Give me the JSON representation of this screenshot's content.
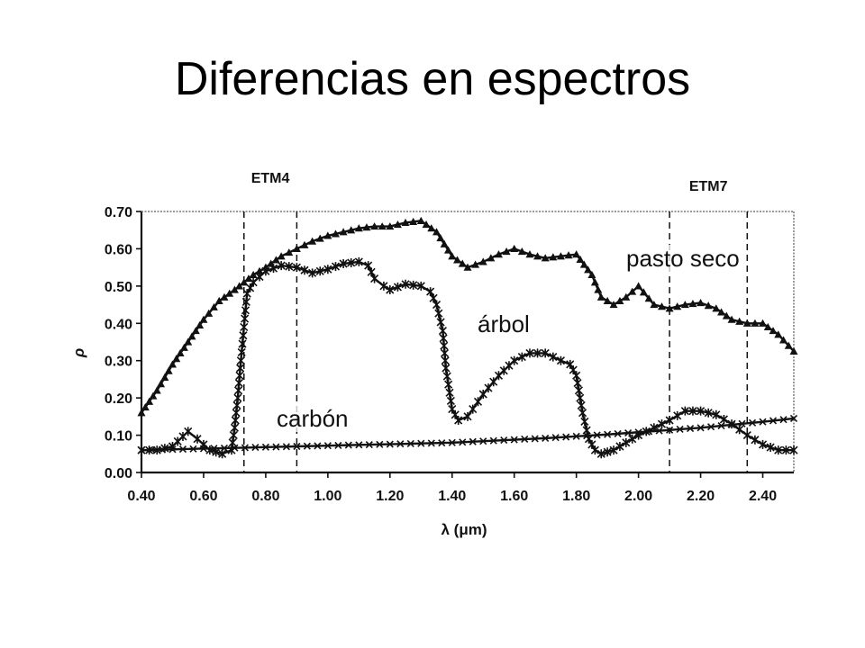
{
  "slide": {
    "title": "Diferencias en espectros"
  },
  "chart_data": {
    "type": "line",
    "xlabel": "λ (μm)",
    "ylabel": "ρ",
    "xlim": [
      0.4,
      2.5
    ],
    "ylim": [
      0.0,
      0.7
    ],
    "xticks": [
      "0.40",
      "0.60",
      "0.80",
      "1.00",
      "1.20",
      "1.40",
      "1.60",
      "1.80",
      "2.00",
      "2.20",
      "2.40"
    ],
    "yticks": [
      "0.00",
      "0.10",
      "0.20",
      "0.30",
      "0.40",
      "0.50",
      "0.60",
      "0.70"
    ],
    "grid": false,
    "bands": [
      {
        "label": "ETM4",
        "x": [
          0.73,
          0.9
        ]
      },
      {
        "label": "ETM7",
        "x": [
          2.1,
          2.35
        ]
      }
    ],
    "series": [
      {
        "name": "pasto seco",
        "marker": "triangle",
        "x": [
          0.4,
          0.45,
          0.5,
          0.55,
          0.6,
          0.65,
          0.7,
          0.73,
          0.76,
          0.8,
          0.85,
          0.9,
          0.95,
          1.0,
          1.05,
          1.1,
          1.15,
          1.2,
          1.25,
          1.3,
          1.35,
          1.4,
          1.45,
          1.5,
          1.55,
          1.6,
          1.65,
          1.7,
          1.75,
          1.8,
          1.85,
          1.88,
          1.92,
          1.96,
          2.0,
          2.05,
          2.1,
          2.15,
          2.2,
          2.25,
          2.3,
          2.35,
          2.4,
          2.45,
          2.5
        ],
        "y": [
          0.16,
          0.22,
          0.29,
          0.35,
          0.41,
          0.46,
          0.49,
          0.51,
          0.53,
          0.55,
          0.58,
          0.6,
          0.62,
          0.635,
          0.645,
          0.655,
          0.66,
          0.66,
          0.67,
          0.675,
          0.645,
          0.58,
          0.55,
          0.565,
          0.585,
          0.6,
          0.585,
          0.575,
          0.58,
          0.585,
          0.53,
          0.47,
          0.45,
          0.47,
          0.5,
          0.45,
          0.44,
          0.45,
          0.455,
          0.44,
          0.41,
          0.4,
          0.4,
          0.37,
          0.325
        ]
      },
      {
        "name": "árbol",
        "marker": "star",
        "x": [
          0.4,
          0.45,
          0.5,
          0.55,
          0.58,
          0.62,
          0.66,
          0.69,
          0.7,
          0.71,
          0.72,
          0.73,
          0.74,
          0.76,
          0.8,
          0.85,
          0.9,
          0.95,
          1.0,
          1.05,
          1.1,
          1.13,
          1.15,
          1.18,
          1.2,
          1.25,
          1.3,
          1.33,
          1.35,
          1.37,
          1.38,
          1.4,
          1.42,
          1.45,
          1.5,
          1.55,
          1.6,
          1.65,
          1.7,
          1.75,
          1.78,
          1.8,
          1.82,
          1.84,
          1.86,
          1.88,
          1.92,
          1.96,
          2.0,
          2.05,
          2.1,
          2.15,
          2.2,
          2.25,
          2.3,
          2.35,
          2.4,
          2.45,
          2.5
        ],
        "y": [
          0.06,
          0.06,
          0.07,
          0.11,
          0.09,
          0.06,
          0.05,
          0.06,
          0.12,
          0.2,
          0.3,
          0.39,
          0.48,
          0.51,
          0.54,
          0.555,
          0.55,
          0.535,
          0.545,
          0.56,
          0.565,
          0.555,
          0.52,
          0.5,
          0.49,
          0.505,
          0.5,
          0.485,
          0.45,
          0.38,
          0.28,
          0.17,
          0.14,
          0.15,
          0.21,
          0.26,
          0.3,
          0.32,
          0.32,
          0.3,
          0.29,
          0.26,
          0.16,
          0.09,
          0.06,
          0.05,
          0.06,
          0.08,
          0.1,
          0.12,
          0.14,
          0.165,
          0.165,
          0.155,
          0.13,
          0.1,
          0.075,
          0.06,
          0.06
        ]
      },
      {
        "name": "carbón",
        "marker": "cross",
        "x": [
          0.4,
          0.5,
          0.6,
          0.7,
          0.8,
          0.9,
          1.0,
          1.1,
          1.2,
          1.3,
          1.4,
          1.5,
          1.6,
          1.7,
          1.8,
          1.9,
          2.0,
          2.1,
          2.2,
          2.3,
          2.4,
          2.5
        ],
        "y": [
          0.06,
          0.062,
          0.064,
          0.066,
          0.068,
          0.07,
          0.072,
          0.074,
          0.076,
          0.078,
          0.08,
          0.084,
          0.088,
          0.092,
          0.097,
          0.102,
          0.108,
          0.114,
          0.12,
          0.128,
          0.136,
          0.145
        ]
      }
    ]
  }
}
